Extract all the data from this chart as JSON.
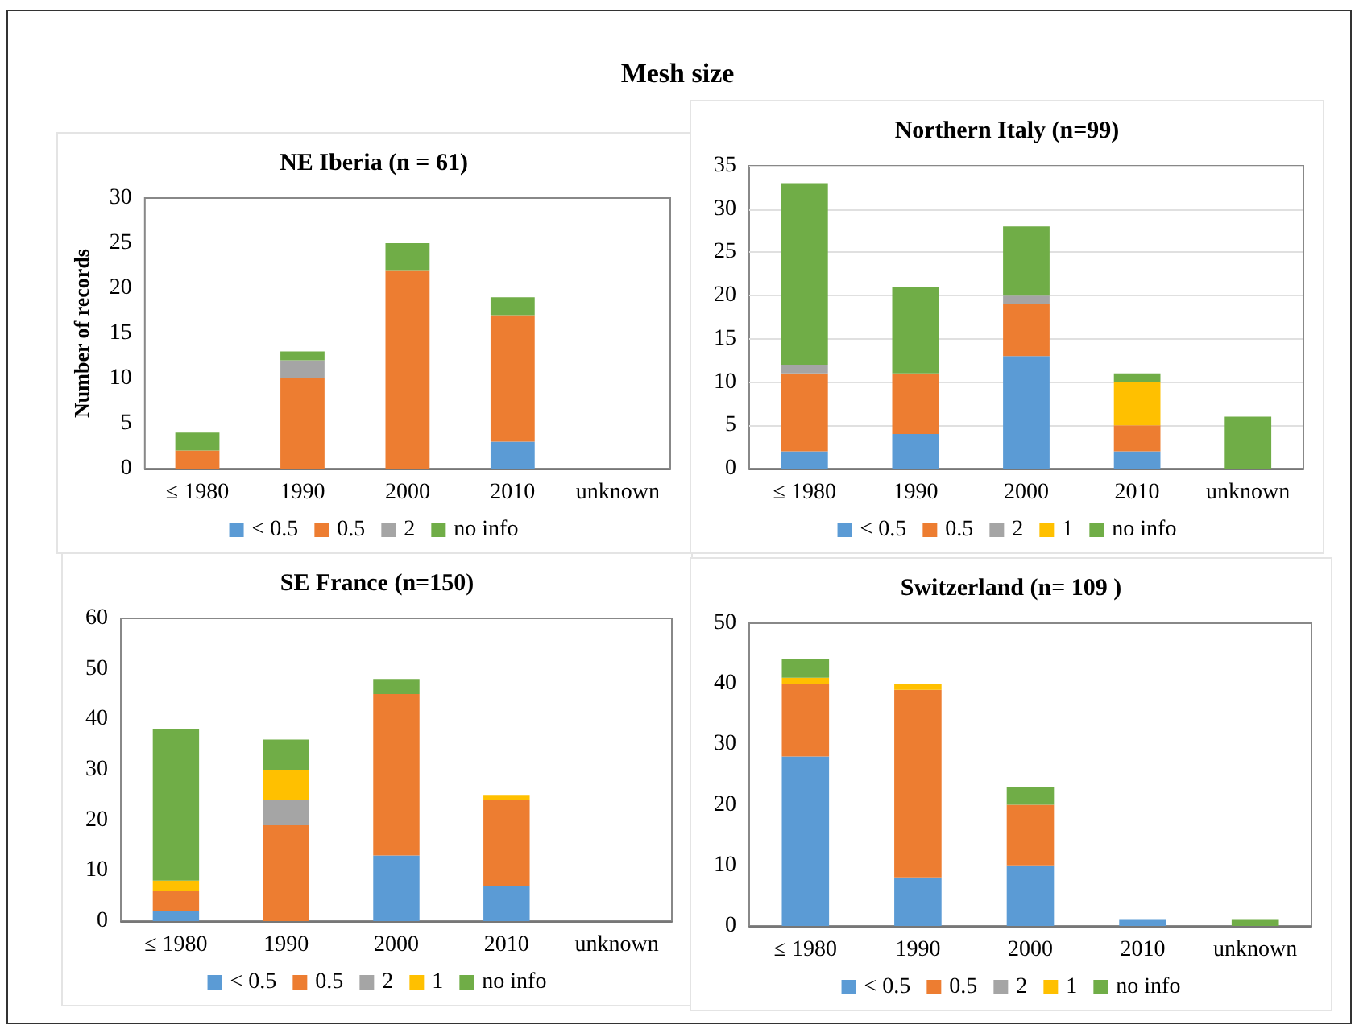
{
  "chart_data": [
    {
      "type": "bar",
      "title": "NE Iberia (n = 61)",
      "annotations": [
        "Mesh size"
      ],
      "ylabel": "Number of records",
      "stacked": true,
      "legend": "bottom",
      "categories": [
        "≤ 1980",
        "1990",
        "2000",
        "2010",
        "unknown"
      ],
      "ylim": [
        0,
        30
      ],
      "yticks": [
        0,
        5,
        10,
        15,
        20,
        25,
        30
      ],
      "series": [
        {
          "name": "< 0.5",
          "color": "#5b9bd5",
          "values": [
            null,
            null,
            null,
            3,
            null
          ]
        },
        {
          "name": "0.5",
          "color": "#ed7d31",
          "values": [
            2,
            10,
            22,
            14,
            null
          ]
        },
        {
          "name": "2",
          "color": "#a5a5a5",
          "values": [
            null,
            2,
            null,
            null,
            null
          ]
        },
        {
          "name": "no info",
          "color": "#70ad47",
          "values": [
            2,
            1,
            3,
            2,
            null
          ]
        }
      ]
    },
    {
      "type": "bar",
      "title": "Northern Italy (n=99)",
      "stacked": true,
      "legend": "bottom",
      "grid": "y",
      "categories": [
        "≤ 1980",
        "1990",
        "2000",
        "2010",
        "unknown"
      ],
      "ylim": [
        0,
        35
      ],
      "yticks": [
        0,
        5,
        10,
        15,
        20,
        25,
        30,
        35
      ],
      "series": [
        {
          "name": "< 0.5",
          "color": "#5b9bd5",
          "values": [
            2,
            4,
            13,
            2,
            null
          ]
        },
        {
          "name": "0.5",
          "color": "#ed7d31",
          "values": [
            9,
            7,
            6,
            3,
            null
          ]
        },
        {
          "name": "2",
          "color": "#a5a5a5",
          "values": [
            1,
            null,
            1,
            null,
            null
          ]
        },
        {
          "name": "1",
          "color": "#ffc000",
          "values": [
            null,
            null,
            null,
            5,
            null
          ]
        },
        {
          "name": "no info",
          "color": "#70ad47",
          "values": [
            21,
            10,
            8,
            1,
            6
          ]
        }
      ]
    },
    {
      "type": "bar",
      "title": "SE France (n=150)",
      "stacked": true,
      "legend": "bottom",
      "categories": [
        "≤ 1980",
        "1990",
        "2000",
        "2010",
        "unknown"
      ],
      "ylim": [
        0,
        60
      ],
      "yticks": [
        0,
        10,
        20,
        30,
        40,
        50,
        60
      ],
      "series": [
        {
          "name": "< 0.5",
          "color": "#5b9bd5",
          "values": [
            2,
            null,
            13,
            7,
            null
          ]
        },
        {
          "name": "0.5",
          "color": "#ed7d31",
          "values": [
            4,
            19,
            32,
            17,
            null
          ]
        },
        {
          "name": "2",
          "color": "#a5a5a5",
          "values": [
            null,
            5,
            null,
            null,
            null
          ]
        },
        {
          "name": "1",
          "color": "#ffc000",
          "values": [
            2,
            6,
            null,
            1,
            null
          ]
        },
        {
          "name": "no info",
          "color": "#70ad47",
          "values": [
            30,
            6,
            3,
            null,
            null
          ]
        }
      ]
    },
    {
      "type": "bar",
      "title": "Switzerland (n= 109 )",
      "stacked": true,
      "legend": "bottom",
      "categories": [
        "≤ 1980",
        "1990",
        "2000",
        "2010",
        "unknown"
      ],
      "ylim": [
        0,
        50
      ],
      "yticks": [
        0,
        10,
        20,
        30,
        40,
        50
      ],
      "series": [
        {
          "name": "< 0.5",
          "color": "#5b9bd5",
          "values": [
            28,
            8,
            10,
            1,
            null
          ]
        },
        {
          "name": "0.5",
          "color": "#ed7d31",
          "values": [
            12,
            31,
            10,
            null,
            null
          ]
        },
        {
          "name": "2",
          "color": "#a5a5a5",
          "values": [
            null,
            null,
            null,
            null,
            null
          ]
        },
        {
          "name": "1",
          "color": "#ffc000",
          "values": [
            1,
            1,
            null,
            null,
            null
          ]
        },
        {
          "name": "no info",
          "color": "#70ad47",
          "values": [
            3,
            null,
            3,
            null,
            1
          ]
        }
      ]
    }
  ]
}
